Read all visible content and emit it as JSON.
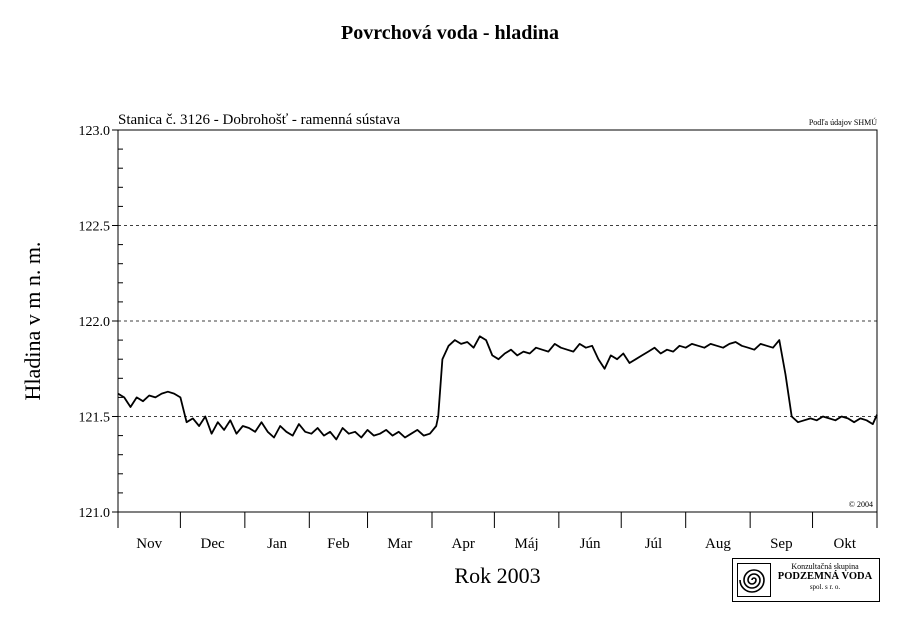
{
  "title": "Povrchová voda - hladina",
  "station_label": "Stanica č. 3126 - Dobrohošť - ramenná sústava",
  "source_note": "Podľa údajov SHMÚ",
  "copyright": "© 2004",
  "logo": {
    "line1": "Konzultačná skupina",
    "line2": "PODZEMNÁ VODA",
    "line3": "spol. s r. o."
  },
  "chart_data": {
    "type": "line",
    "title": "Povrchová voda - hladina",
    "xlabel": "Rok 2003",
    "ylabel": "Hladina v m n. m.",
    "ylim": [
      121.0,
      123.0
    ],
    "yticks": [
      "121.0",
      "121.5",
      "122.0",
      "122.5",
      "123.0"
    ],
    "months": [
      "Nov",
      "Dec",
      "Jan",
      "Feb",
      "Mar",
      "Apr",
      "Máj",
      "Jún",
      "Júl",
      "Aug",
      "Sep",
      "Okt"
    ],
    "month_days": [
      30,
      31,
      31,
      28,
      31,
      30,
      31,
      30,
      31,
      31,
      30,
      31
    ],
    "grid": "dashed horizontal at 121.5, 122.0, 122.5",
    "series": [
      {
        "x_day": [
          0,
          3,
          6,
          9,
          12,
          15,
          18,
          21,
          24,
          27,
          30,
          33,
          36,
          39,
          42,
          45,
          48,
          51,
          54,
          57,
          60,
          63,
          66,
          69,
          72,
          75,
          78,
          81,
          84,
          87,
          90,
          93,
          96,
          99,
          102,
          105,
          108,
          111,
          114,
          117,
          120,
          123,
          126,
          129,
          132,
          135,
          138,
          141,
          144,
          147,
          150,
          153,
          154,
          156,
          159,
          162,
          165,
          168,
          171,
          174,
          177,
          180,
          183,
          186,
          189,
          192,
          195,
          198,
          201,
          204,
          207,
          210,
          213,
          216,
          219,
          222,
          225,
          228,
          231,
          234,
          237,
          240,
          243,
          246,
          249,
          252,
          255,
          258,
          261,
          264,
          267,
          270,
          273,
          276,
          279,
          282,
          285,
          288,
          291,
          294,
          297,
          300,
          303,
          306,
          309,
          312,
          315,
          318,
          321,
          324,
          327,
          330,
          333,
          336,
          339,
          342,
          345,
          348,
          351,
          354,
          357,
          360,
          363,
          365
        ],
        "values": [
          121.62,
          121.6,
          121.55,
          121.6,
          121.58,
          121.61,
          121.6,
          121.62,
          121.63,
          121.62,
          121.6,
          121.47,
          121.49,
          121.45,
          121.5,
          121.41,
          121.47,
          121.43,
          121.48,
          121.41,
          121.45,
          121.44,
          121.42,
          121.47,
          121.42,
          121.39,
          121.45,
          121.42,
          121.4,
          121.46,
          121.42,
          121.41,
          121.44,
          121.4,
          121.42,
          121.38,
          121.44,
          121.41,
          121.42,
          121.39,
          121.43,
          121.4,
          121.41,
          121.43,
          121.4,
          121.42,
          121.39,
          121.41,
          121.43,
          121.4,
          121.41,
          121.45,
          121.5,
          121.8,
          121.87,
          121.9,
          121.88,
          121.89,
          121.86,
          121.92,
          121.9,
          121.82,
          121.8,
          121.83,
          121.85,
          121.82,
          121.84,
          121.83,
          121.86,
          121.85,
          121.84,
          121.88,
          121.86,
          121.85,
          121.84,
          121.88,
          121.86,
          121.87,
          121.8,
          121.75,
          121.82,
          121.8,
          121.83,
          121.78,
          121.8,
          121.82,
          121.84,
          121.86,
          121.83,
          121.85,
          121.84,
          121.87,
          121.86,
          121.88,
          121.87,
          121.86,
          121.88,
          121.87,
          121.86,
          121.88,
          121.89,
          121.87,
          121.86,
          121.85,
          121.88,
          121.87,
          121.86,
          121.9,
          121.72,
          121.5,
          121.47,
          121.48,
          121.49,
          121.48,
          121.5,
          121.49,
          121.48,
          121.5,
          121.49,
          121.47,
          121.49,
          121.48,
          121.46,
          121.51
        ]
      }
    ]
  }
}
